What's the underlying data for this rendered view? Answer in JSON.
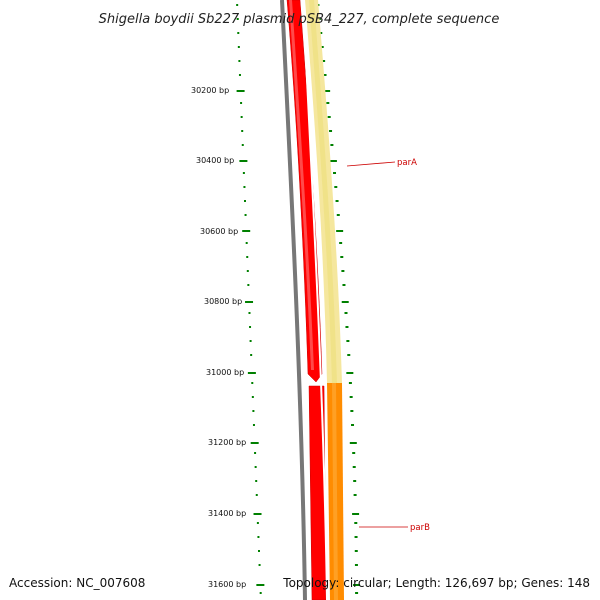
{
  "title": "Shigella boydii Sb227 plasmid pSB4_227, complete sequence",
  "accession_text": "Accession: NC_007608",
  "info_text": "Topology: circular; Length: 126,697 bp; Genes: 148",
  "ruler": {
    "labels": [
      "30200 bp",
      "30400 bp",
      "30600 bp",
      "30800 bp",
      "31000 bp",
      "31200 bp",
      "31400 bp",
      "31600 bp"
    ],
    "color": "#008000"
  },
  "genes": [
    {
      "name": "parA",
      "color": "#ff0000"
    },
    {
      "name": "parB",
      "color": "#ff0000"
    }
  ],
  "features": [
    {
      "name": "backbone",
      "color": "#777777"
    },
    {
      "name": "cds-forward",
      "color": "#ff0000"
    },
    {
      "name": "cds-ring-1",
      "color": "#f5e79e"
    },
    {
      "name": "cds-ring-2",
      "color": "#ff8c00"
    }
  ]
}
